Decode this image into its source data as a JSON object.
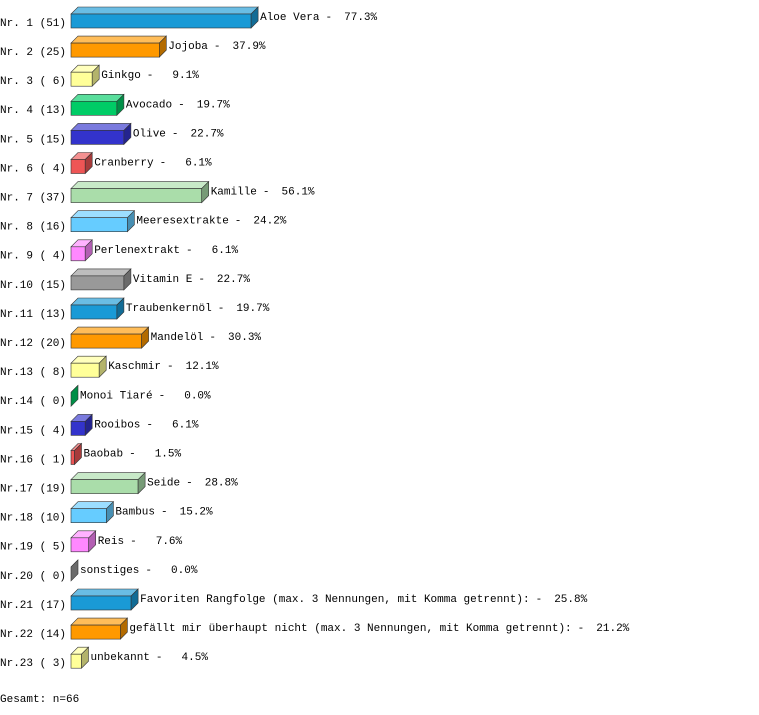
{
  "chart_data": {
    "type": "bar3d",
    "row_labels": [
      "Nr. 1 (51)",
      "Nr. 2 (25)",
      "Nr. 3 ( 6)",
      "Nr. 4 (13)",
      "Nr. 5 (15)",
      "Nr. 6 ( 4)",
      "Nr. 7 (37)",
      "Nr. 8 (16)",
      "Nr. 9 ( 4)",
      "Nr.10 (15)",
      "Nr.11 (13)",
      "Nr.12 (20)",
      "Nr.13 ( 8)",
      "Nr.14 ( 0)",
      "Nr.15 ( 4)",
      "Nr.16 ( 1)",
      "Nr.17 (19)",
      "Nr.18 (10)",
      "Nr.19 ( 5)",
      "Nr.20 ( 0)",
      "Nr.21 (17)",
      "Nr.22 (14)",
      "Nr.23 ( 3)"
    ],
    "categories": [
      "Aloe Vera",
      "Jojoba",
      "Ginkgo",
      "Avocado",
      "Olive",
      "Cranberry",
      "Kamille",
      "Meeresextrakte",
      "Perlenextrakt",
      "Vitamin E",
      "Traubenkernöl",
      "Mandelöl",
      "Kaschmir",
      "Monoi Tiaré",
      "Rooibos",
      "Baobab",
      "Seide",
      "Bambus",
      "Reis",
      "sonstiges",
      "Favoriten Rangfolge (max. 3 Nennungen, mit Komma getrennt):",
      "gefällt mir überhaupt nicht (max. 3 Nennungen, mit Komma getrennt):",
      "unbekannt"
    ],
    "separator": "-",
    "values": [
      77.3,
      37.9,
      9.1,
      19.7,
      22.7,
      6.1,
      56.1,
      24.2,
      6.1,
      22.7,
      19.7,
      30.3,
      12.1,
      0.0,
      6.1,
      1.5,
      28.8,
      15.2,
      7.6,
      0.0,
      25.8,
      21.2,
      4.5
    ],
    "value_labels": [
      "77.3%",
      "37.9%",
      "9.1%",
      "19.7%",
      "22.7%",
      "6.1%",
      "56.1%",
      "24.2%",
      "6.1%",
      "22.7%",
      "19.7%",
      "30.3%",
      "12.1%",
      "0.0%",
      "6.1%",
      "1.5%",
      "28.8%",
      "15.2%",
      "7.6%",
      "0.0%",
      "25.8%",
      "21.2%",
      "4.5%"
    ],
    "colors": [
      "#1a9ad6",
      "#ff9900",
      "#ffff99",
      "#00cc66",
      "#3333cc",
      "#ee5555",
      "#aaddaa",
      "#66ccff",
      "#ff88ff",
      "#999999",
      "#1a9ad6",
      "#ff9900",
      "#ffff99",
      "#00cc66",
      "#3333cc",
      "#ee5555",
      "#aaddaa",
      "#66ccff",
      "#ff88ff",
      "#999999",
      "#1a9ad6",
      "#ff9900",
      "#ffff99"
    ],
    "xlim": [
      0,
      100
    ],
    "footer": "Gesamt: n=66"
  }
}
